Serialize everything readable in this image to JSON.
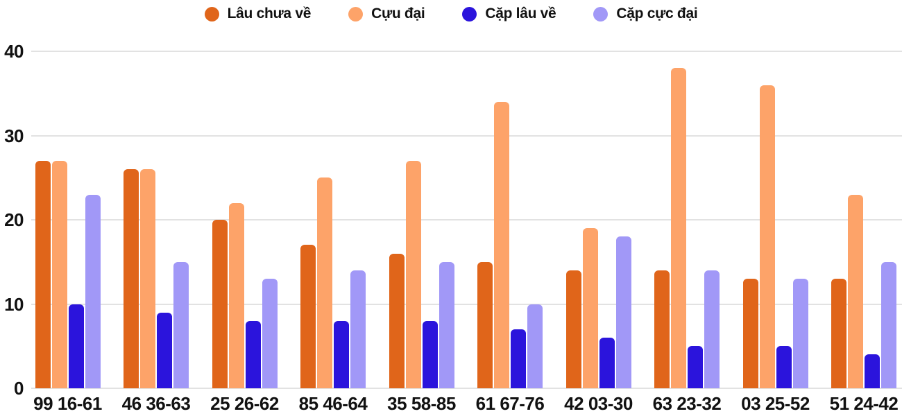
{
  "chart_data": {
    "type": "bar",
    "title": "",
    "xlabel": "",
    "ylabel": "",
    "categories": [
      "99 16-61",
      "46 36-63",
      "25 26-62",
      "85 46-64",
      "35 58-85",
      "61 67-76",
      "42 03-30",
      "63 23-32",
      "03 25-52",
      "51 24-42"
    ],
    "series": [
      {
        "name": "Lâu chưa về",
        "color": "#E0651A",
        "values": [
          27,
          26,
          20,
          17,
          16,
          15,
          14,
          14,
          13,
          13
        ]
      },
      {
        "name": "Cựu đại",
        "color": "#FDA369",
        "values": [
          27,
          26,
          22,
          25,
          27,
          34,
          19,
          38,
          36,
          23
        ]
      },
      {
        "name": "Cặp lâu về",
        "color": "#2B14DC",
        "values": [
          10,
          9,
          8,
          8,
          8,
          7,
          6,
          5,
          5,
          4
        ]
      },
      {
        "name": "Cặp cực đại",
        "color": "#A198F7",
        "values": [
          23,
          15,
          13,
          14,
          15,
          10,
          18,
          14,
          13,
          15
        ]
      }
    ],
    "yticks": [
      0,
      10,
      20,
      30,
      40
    ],
    "ylim": [
      0,
      40
    ],
    "grid": true,
    "legend_position": "top",
    "colors": {
      "gridline": "#E2E2E2",
      "axis_text": "#111111",
      "background": "#FFFFFF"
    }
  }
}
